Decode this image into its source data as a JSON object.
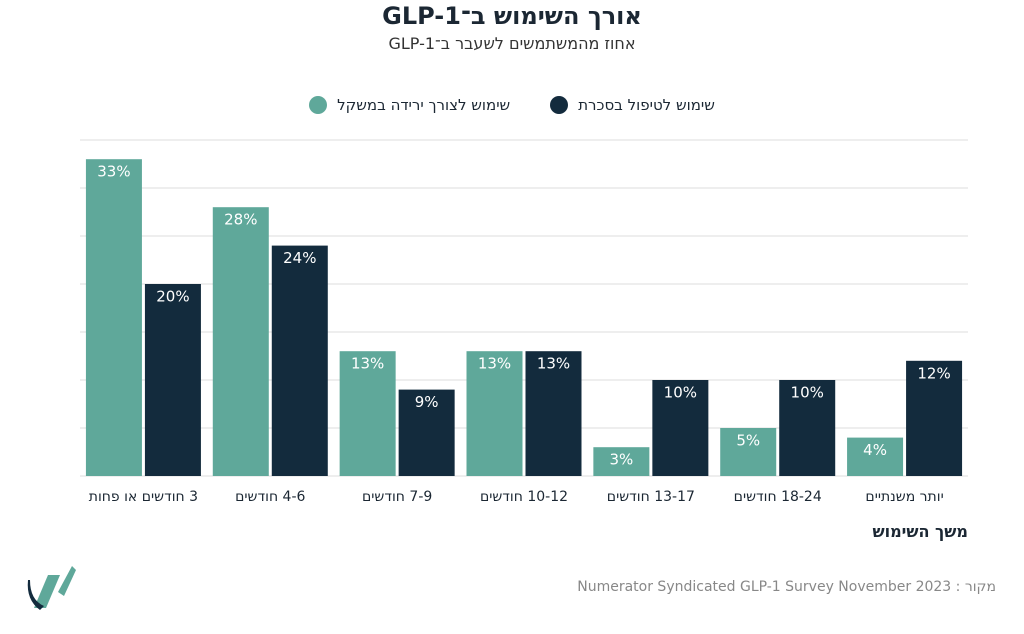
{
  "chart_data": {
    "type": "bar",
    "title": "אורך השימוש ב־GLP-1",
    "subtitle": "אחוז מהמשתמשים לשעבר ב־GLP-1",
    "x_label": "משך השימוש",
    "source": "מקור : Numerator Syndicated GLP-1 Survey November 2023",
    "categories": [
      "3 חודשים או פחות",
      "4-6 חודשים",
      "7-9 חודשים",
      "10-12 חודשים",
      "13-17 חודשים",
      "18-24 חודשים",
      "יותר משנתיים"
    ],
    "series": [
      {
        "name": "שימוש לצורך ירידה במשקל",
        "color": "#5fa89a",
        "values": [
          33,
          28,
          13,
          13,
          3,
          5,
          4
        ],
        "value_labels": [
          "33%",
          "28%",
          "13%",
          "13%",
          "3%",
          "5%",
          "4%"
        ]
      },
      {
        "name": "שימוש לטיפול בסכרת",
        "color": "#132b3d",
        "values": [
          20,
          24,
          9,
          13,
          10,
          10,
          12
        ],
        "value_labels": [
          "20%",
          "24%",
          "9%",
          "13%",
          "10%",
          "10%",
          "12%"
        ]
      }
    ],
    "ylim": [
      0,
      35
    ],
    "yticks": [
      0,
      5,
      10,
      15,
      20,
      25,
      30,
      35
    ],
    "grid": true
  }
}
